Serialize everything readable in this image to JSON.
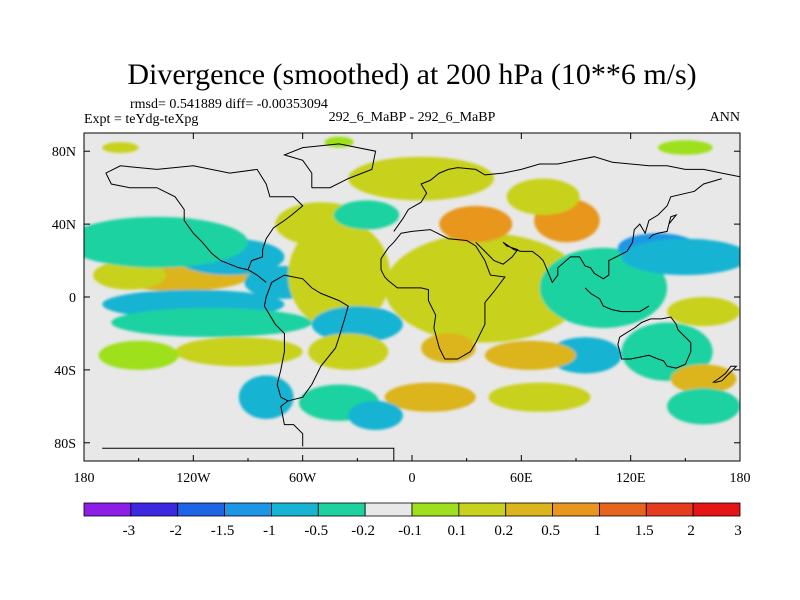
{
  "chart_data": {
    "type": "heatmap",
    "title": "Divergence (smoothed) at 200 hPa (10**6 m/s)",
    "stats_line": "rmsd= 0.541889 diff= -0.00353094",
    "left_label": "Expt = teYdg-teXpg",
    "center_label": "292_6_MaBP - 292_6_MaBP",
    "right_label": "ANN",
    "x_range": [
      -180,
      180
    ],
    "y_range": [
      -90,
      90
    ],
    "x_ticks": [
      {
        "value": -180,
        "label": "180"
      },
      {
        "value": -120,
        "label": "120W"
      },
      {
        "value": -60,
        "label": "60W"
      },
      {
        "value": 0,
        "label": "0"
      },
      {
        "value": 60,
        "label": "60E"
      },
      {
        "value": 120,
        "label": "120E"
      },
      {
        "value": 180,
        "label": "180"
      }
    ],
    "y_ticks": [
      {
        "value": 80,
        "label": "80N"
      },
      {
        "value": 40,
        "label": "40N"
      },
      {
        "value": 0,
        "label": "0"
      },
      {
        "value": -40,
        "label": "40S"
      },
      {
        "value": -80,
        "label": "80S"
      }
    ],
    "colorbar": {
      "colors": [
        "#8c1ee8",
        "#3c28e0",
        "#1e64e6",
        "#1e96e6",
        "#16b4d2",
        "#1ed2a0",
        "#e8e8e8",
        "#9ee01e",
        "#c8d21e",
        "#dcb41e",
        "#e8961e",
        "#e6641e",
        "#e63c1e",
        "#e61414"
      ],
      "labels": [
        "-3",
        "-2",
        "-1.5",
        "-1",
        "-0.5",
        "-0.2",
        "-0.1",
        "0.1",
        "0.2",
        "0.5",
        "1",
        "1.5",
        "2",
        "3"
      ]
    },
    "features": [
      {
        "lon": -130,
        "lat": 15,
        "a": 18,
        "b": 5,
        "level": 13
      },
      {
        "lon": -130,
        "lat": 15,
        "a": 30,
        "b": 8,
        "level": 11
      },
      {
        "lon": -128,
        "lat": 14,
        "a": 42,
        "b": 11,
        "level": 9
      },
      {
        "lon": -155,
        "lat": 12,
        "a": 20,
        "b": 8,
        "level": 8
      },
      {
        "lon": -100,
        "lat": 23,
        "a": 18,
        "b": 6,
        "level": 2
      },
      {
        "lon": -100,
        "lat": 22,
        "a": 30,
        "b": 10,
        "level": 4
      },
      {
        "lon": -140,
        "lat": 28,
        "a": 32,
        "b": 9,
        "level": 4
      },
      {
        "lon": -140,
        "lat": 30,
        "a": 50,
        "b": 14,
        "level": 5
      },
      {
        "lon": -120,
        "lat": -4,
        "a": 50,
        "b": 8,
        "level": 4
      },
      {
        "lon": -110,
        "lat": -14,
        "a": 55,
        "b": 8,
        "level": 5
      },
      {
        "lon": -70,
        "lat": 8,
        "a": 22,
        "b": 9,
        "level": 4
      },
      {
        "lon": -95,
        "lat": -30,
        "a": 35,
        "b": 8,
        "level": 8
      },
      {
        "lon": -150,
        "lat": -32,
        "a": 22,
        "b": 8,
        "level": 7
      },
      {
        "lon": -40,
        "lat": 14,
        "a": 20,
        "b": 20,
        "level": 10
      },
      {
        "lon": -40,
        "lat": 12,
        "a": 28,
        "b": 30,
        "level": 8
      },
      {
        "lon": -50,
        "lat": 40,
        "a": 25,
        "b": 12,
        "level": 8
      },
      {
        "lon": -25,
        "lat": 45,
        "a": 18,
        "b": 8,
        "level": 5
      },
      {
        "lon": 50,
        "lat": 2,
        "a": 15,
        "b": 8,
        "level": 13
      },
      {
        "lon": 50,
        "lat": 4,
        "a": 28,
        "b": 15,
        "level": 11
      },
      {
        "lon": 45,
        "lat": 5,
        "a": 45,
        "b": 24,
        "level": 9
      },
      {
        "lon": 40,
        "lat": 5,
        "a": 55,
        "b": 30,
        "level": 8
      },
      {
        "lon": 5,
        "lat": 65,
        "a": 40,
        "b": 12,
        "level": 8
      },
      {
        "lon": 35,
        "lat": 40,
        "a": 20,
        "b": 10,
        "level": 10
      },
      {
        "lon": 85,
        "lat": 42,
        "a": 18,
        "b": 12,
        "level": 10
      },
      {
        "lon": 72,
        "lat": 55,
        "a": 20,
        "b": 10,
        "level": 8
      },
      {
        "lon": 115,
        "lat": 0,
        "a": 8,
        "b": 5,
        "level": 0
      },
      {
        "lon": 112,
        "lat": 0,
        "a": 18,
        "b": 10,
        "level": 2
      },
      {
        "lon": 110,
        "lat": 4,
        "a": 28,
        "b": 18,
        "level": 4
      },
      {
        "lon": 105,
        "lat": 5,
        "a": 35,
        "b": 22,
        "level": 5
      },
      {
        "lon": 135,
        "lat": 27,
        "a": 22,
        "b": 8,
        "level": 3
      },
      {
        "lon": 150,
        "lat": 22,
        "a": 35,
        "b": 10,
        "level": 4
      },
      {
        "lon": 160,
        "lat": -8,
        "a": 20,
        "b": 8,
        "level": 8
      },
      {
        "lon": 140,
        "lat": -30,
        "a": 15,
        "b": 10,
        "level": 3
      },
      {
        "lon": 140,
        "lat": -30,
        "a": 25,
        "b": 16,
        "level": 5
      },
      {
        "lon": 95,
        "lat": -32,
        "a": 20,
        "b": 10,
        "level": 4
      },
      {
        "lon": 160,
        "lat": -45,
        "a": 18,
        "b": 8,
        "level": 9
      },
      {
        "lon": 65,
        "lat": -32,
        "a": 25,
        "b": 8,
        "level": 9
      },
      {
        "lon": 20,
        "lat": -28,
        "a": 15,
        "b": 8,
        "level": 9
      },
      {
        "lon": 10,
        "lat": -55,
        "a": 25,
        "b": 8,
        "level": 9
      },
      {
        "lon": 70,
        "lat": -55,
        "a": 28,
        "b": 8,
        "level": 8
      },
      {
        "lon": -30,
        "lat": -15,
        "a": 25,
        "b": 10,
        "level": 4
      },
      {
        "lon": -35,
        "lat": -30,
        "a": 22,
        "b": 10,
        "level": 8
      },
      {
        "lon": -80,
        "lat": -55,
        "a": 15,
        "b": 12,
        "level": 4
      },
      {
        "lon": -40,
        "lat": -58,
        "a": 22,
        "b": 10,
        "level": 5
      },
      {
        "lon": -20,
        "lat": -65,
        "a": 15,
        "b": 8,
        "level": 4
      },
      {
        "lon": 150,
        "lat": 82,
        "a": 15,
        "b": 4,
        "level": 7
      },
      {
        "lon": -160,
        "lat": 82,
        "a": 10,
        "b": 3,
        "level": 8
      },
      {
        "lon": -40,
        "lat": 85,
        "a": 8,
        "b": 3,
        "level": 7
      },
      {
        "lon": 160,
        "lat": -60,
        "a": 20,
        "b": 10,
        "level": 5
      }
    ],
    "coastlines": [
      [
        [
          -10,
          -90
        ],
        [
          -10,
          -83
        ],
        [
          -170,
          -83
        ]
      ],
      [
        [
          -60,
          -82
        ],
        [
          -60,
          -75
        ],
        [
          -65,
          -70
        ],
        [
          -70,
          -70
        ],
        [
          -72,
          -60
        ],
        [
          -68,
          -57
        ],
        [
          -60,
          -55
        ],
        [
          -55,
          -48
        ],
        [
          -50,
          -38
        ],
        [
          -42,
          -28
        ],
        [
          -40,
          -22
        ],
        [
          -37,
          -12
        ],
        [
          -35,
          -5
        ],
        [
          -40,
          -2
        ],
        [
          -50,
          2
        ],
        [
          -55,
          5
        ],
        [
          -60,
          10
        ],
        [
          -70,
          12
        ],
        [
          -77,
          8
        ],
        [
          -80,
          0
        ],
        [
          -81,
          -5
        ],
        [
          -75,
          -15
        ],
        [
          -70,
          -20
        ],
        [
          -70,
          -30
        ],
        [
          -72,
          -40
        ],
        [
          -74,
          -48
        ],
        [
          -72,
          -55
        ],
        [
          -68,
          -57
        ]
      ],
      [
        [
          -80,
          8
        ],
        [
          -85,
          12
        ],
        [
          -90,
          15
        ],
        [
          -95,
          16
        ],
        [
          -105,
          20
        ],
        [
          -110,
          24
        ],
        [
          -115,
          30
        ],
        [
          -120,
          35
        ],
        [
          -125,
          42
        ],
        [
          -125,
          48
        ],
        [
          -130,
          55
        ],
        [
          -140,
          60
        ],
        [
          -155,
          60
        ],
        [
          -165,
          62
        ],
        [
          -168,
          68
        ],
        [
          -160,
          72
        ],
        [
          -140,
          70
        ],
        [
          -120,
          72
        ],
        [
          -100,
          68
        ],
        [
          -85,
          70
        ],
        [
          -80,
          62
        ],
        [
          -78,
          55
        ],
        [
          -65,
          55
        ],
        [
          -60,
          50
        ],
        [
          -66,
          45
        ],
        [
          -70,
          42
        ],
        [
          -76,
          38
        ],
        [
          -80,
          32
        ],
        [
          -82,
          26
        ],
        [
          -82,
          22
        ],
        [
          -88,
          20
        ],
        [
          -90,
          15
        ]
      ],
      [
        [
          -55,
          60
        ],
        [
          -45,
          60
        ],
        [
          -35,
          65
        ],
        [
          -22,
          70
        ],
        [
          -20,
          80
        ],
        [
          -40,
          84
        ],
        [
          -60,
          82
        ],
        [
          -70,
          78
        ],
        [
          -60,
          75
        ],
        [
          -55,
          68
        ],
        [
          -55,
          60
        ]
      ],
      [
        [
          -10,
          36
        ],
        [
          -5,
          43
        ],
        [
          -2,
          48
        ],
        [
          5,
          52
        ],
        [
          8,
          57
        ],
        [
          5,
          62
        ],
        [
          10,
          64
        ],
        [
          15,
          68
        ],
        [
          20,
          70
        ],
        [
          25,
          71
        ],
        [
          35,
          70
        ],
        [
          40,
          67
        ],
        [
          50,
          68
        ],
        [
          60,
          70
        ],
        [
          70,
          73
        ],
        [
          80,
          73
        ],
        [
          90,
          75
        ],
        [
          100,
          77
        ],
        [
          110,
          74
        ],
        [
          120,
          73
        ],
        [
          130,
          72
        ],
        [
          140,
          72
        ],
        [
          150,
          70
        ],
        [
          160,
          70
        ],
        [
          170,
          68
        ],
        [
          180,
          66
        ]
      ],
      [
        [
          -17,
          15
        ],
        [
          -17,
          21
        ],
        [
          -13,
          27
        ],
        [
          -10,
          30
        ],
        [
          -6,
          35
        ],
        [
          0,
          36
        ],
        [
          10,
          37
        ],
        [
          20,
          32
        ],
        [
          30,
          31
        ],
        [
          35,
          28
        ],
        [
          40,
          20
        ],
        [
          43,
          12
        ],
        [
          51,
          11
        ],
        [
          45,
          3
        ],
        [
          40,
          -3
        ],
        [
          40,
          -10
        ],
        [
          40,
          -15
        ],
        [
          35,
          -25
        ],
        [
          32,
          -30
        ],
        [
          25,
          -34
        ],
        [
          18,
          -34
        ],
        [
          15,
          -28
        ],
        [
          12,
          -17
        ],
        [
          13,
          -10
        ],
        [
          9,
          -2
        ],
        [
          9,
          4
        ],
        [
          5,
          5
        ],
        [
          -5,
          5
        ],
        [
          -8,
          5
        ],
        [
          -13,
          9
        ],
        [
          -15,
          11
        ],
        [
          -17,
          15
        ]
      ],
      [
        [
          35,
          30
        ],
        [
          40,
          25
        ],
        [
          45,
          20
        ],
        [
          50,
          18
        ],
        [
          55,
          22
        ],
        [
          58,
          26
        ],
        [
          52,
          28
        ],
        [
          50,
          30
        ],
        [
          56,
          26
        ],
        [
          60,
          25
        ],
        [
          66,
          25
        ],
        [
          70,
          22
        ],
        [
          72,
          20
        ],
        [
          77,
          8
        ],
        [
          80,
          12
        ],
        [
          80,
          16
        ],
        [
          87,
          22
        ],
        [
          92,
          22
        ],
        [
          95,
          17
        ],
        [
          98,
          16
        ],
        [
          100,
          13
        ],
        [
          105,
          10
        ],
        [
          108,
          12
        ],
        [
          108,
          20
        ],
        [
          112,
          22
        ],
        [
          118,
          25
        ],
        [
          121,
          30
        ],
        [
          122,
          37
        ],
        [
          125,
          40
        ],
        [
          128,
          35
        ],
        [
          130,
          42
        ],
        [
          135,
          45
        ],
        [
          140,
          50
        ],
        [
          142,
          55
        ],
        [
          155,
          58
        ],
        [
          160,
          62
        ],
        [
          170,
          65
        ]
      ],
      [
        [
          95,
          5
        ],
        [
          98,
          2
        ],
        [
          103,
          -1
        ],
        [
          105,
          -5
        ],
        [
          110,
          -7
        ],
        [
          115,
          -8
        ],
        [
          120,
          -8
        ],
        [
          125,
          -8
        ],
        [
          130,
          -5
        ]
      ],
      [
        [
          114,
          -22
        ],
        [
          113,
          -26
        ],
        [
          115,
          -34
        ],
        [
          120,
          -34
        ],
        [
          125,
          -33
        ],
        [
          130,
          -32
        ],
        [
          135,
          -34
        ],
        [
          138,
          -35
        ],
        [
          140,
          -38
        ],
        [
          145,
          -39
        ],
        [
          150,
          -37
        ],
        [
          153,
          -30
        ],
        [
          153,
          -25
        ],
        [
          150,
          -22
        ],
        [
          146,
          -18
        ],
        [
          145,
          -15
        ],
        [
          142,
          -11
        ],
        [
          137,
          -12
        ],
        [
          136,
          -12
        ],
        [
          131,
          -12
        ],
        [
          126,
          -14
        ],
        [
          122,
          -17
        ],
        [
          114,
          -22
        ]
      ],
      [
        [
          165,
          -47
        ],
        [
          168,
          -45
        ],
        [
          172,
          -42
        ],
        [
          175,
          -38
        ],
        [
          178,
          -38
        ],
        [
          174,
          -42
        ],
        [
          170,
          -46
        ],
        [
          166,
          -47
        ]
      ],
      [
        [
          130,
          32
        ],
        [
          132,
          34
        ],
        [
          135,
          35
        ],
        [
          140,
          36
        ],
        [
          141,
          40
        ],
        [
          142,
          44
        ],
        [
          145,
          45
        ],
        [
          141,
          40
        ]
      ]
    ]
  }
}
